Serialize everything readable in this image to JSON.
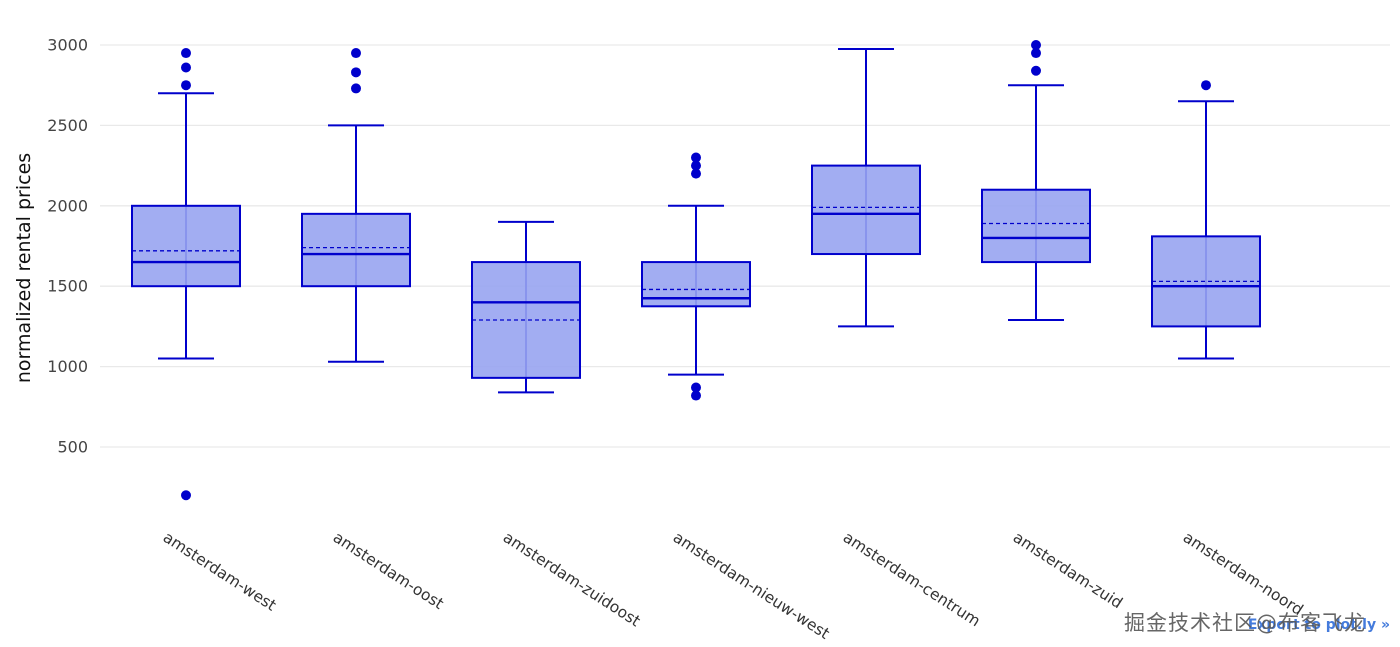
{
  "chart_data": {
    "type": "box",
    "title": "",
    "xlabel": "",
    "ylabel": "normalized rental prices",
    "yticks": [
      500,
      1000,
      1500,
      2000,
      2500,
      3000
    ],
    "ylim": [
      150,
      3050
    ],
    "grid": true,
    "legend": "none",
    "categories": [
      "amsterdam-west",
      "amsterdam-oost",
      "amsterdam-zuidoost",
      "amsterdam-nieuw-west",
      "amsterdam-centrum",
      "amsterdam-zuid",
      "amsterdam-noord"
    ],
    "series": [
      {
        "category": "amsterdam-west",
        "lower_whisker": 1050,
        "q1": 1500,
        "median": 1650,
        "mean": 1720,
        "q3": 2000,
        "upper_whisker": 2700,
        "outliers": [
          200,
          2750,
          2860,
          2950
        ]
      },
      {
        "category": "amsterdam-oost",
        "lower_whisker": 1030,
        "q1": 1500,
        "median": 1700,
        "mean": 1740,
        "q3": 1950,
        "upper_whisker": 2500,
        "outliers": [
          2730,
          2830,
          2950
        ]
      },
      {
        "category": "amsterdam-zuidoost",
        "lower_whisker": 840,
        "q1": 930,
        "median": 1400,
        "mean": 1290,
        "q3": 1650,
        "upper_whisker": 1900,
        "outliers": []
      },
      {
        "category": "amsterdam-nieuw-west",
        "lower_whisker": 950,
        "q1": 1375,
        "median": 1425,
        "mean": 1480,
        "q3": 1650,
        "upper_whisker": 2000,
        "outliers": [
          820,
          870,
          2200,
          2250,
          2300
        ]
      },
      {
        "category": "amsterdam-centrum",
        "lower_whisker": 1250,
        "q1": 1700,
        "median": 1950,
        "mean": 1990,
        "q3": 2250,
        "upper_whisker": 2975,
        "outliers": []
      },
      {
        "category": "amsterdam-zuid",
        "lower_whisker": 1290,
        "q1": 1650,
        "median": 1800,
        "mean": 1890,
        "q3": 2100,
        "upper_whisker": 2750,
        "outliers": [
          2840,
          2950,
          3000
        ]
      },
      {
        "category": "amsterdam-noord",
        "lower_whisker": 1050,
        "q1": 1250,
        "median": 1500,
        "mean": 1530,
        "q3": 1810,
        "upper_whisker": 2650,
        "outliers": [
          2750
        ]
      }
    ],
    "colors": {
      "box_fill": "#98A4F1",
      "box_line": "#0000CC",
      "outlier": "#0000CC",
      "grid": "#E9E9E9",
      "tick_text": "#444444",
      "axis_label_text": "#111111"
    }
  },
  "watermark": {
    "text": "掘金技术社区@布客飞龙"
  },
  "plotly_link": {
    "text": "Export to plot.ly »"
  }
}
